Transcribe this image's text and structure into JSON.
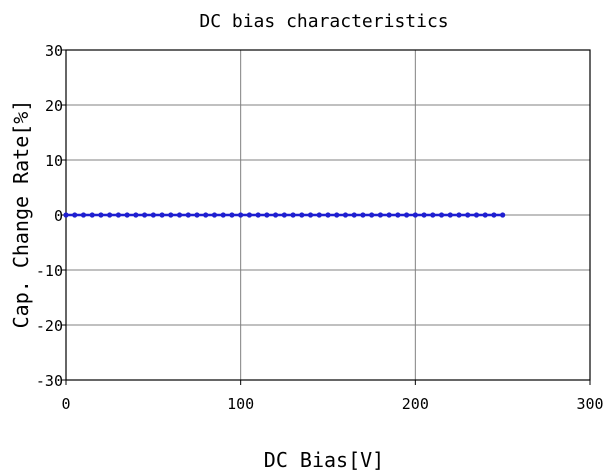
{
  "chart_data": {
    "type": "line",
    "title": "DC bias characteristics",
    "xlabel": "DC Bias[V]",
    "ylabel": "Cap.  Change Rate[%]",
    "xlim": [
      0,
      300
    ],
    "ylim": [
      -30,
      30
    ],
    "xticks": [
      0,
      100,
      200,
      300
    ],
    "yticks": [
      -30,
      -20,
      -10,
      0,
      10,
      20,
      30
    ],
    "grid": true,
    "colors": {
      "series": "#1f1fd0",
      "grid": "#808080",
      "axis": "#000000"
    },
    "series": [
      {
        "x": [
          0,
          5,
          10,
          15,
          20,
          25,
          30,
          35,
          40,
          45,
          50,
          55,
          60,
          65,
          70,
          75,
          80,
          85,
          90,
          95,
          100,
          105,
          110,
          115,
          120,
          125,
          130,
          135,
          140,
          145,
          150,
          155,
          160,
          165,
          170,
          175,
          180,
          185,
          190,
          195,
          200,
          205,
          210,
          215,
          220,
          225,
          230,
          235,
          240,
          245,
          250
        ],
        "values": [
          0,
          0,
          0,
          0,
          0,
          0,
          0,
          0,
          0,
          0,
          0,
          0,
          0,
          0,
          0,
          0,
          0,
          0,
          0,
          0,
          0,
          0,
          0,
          0,
          0,
          0,
          0,
          0,
          0,
          0,
          0,
          0,
          0,
          0,
          0,
          0,
          0,
          0,
          0,
          0,
          0,
          0,
          0,
          0,
          0,
          0,
          0,
          0,
          0,
          0,
          0
        ]
      }
    ]
  }
}
